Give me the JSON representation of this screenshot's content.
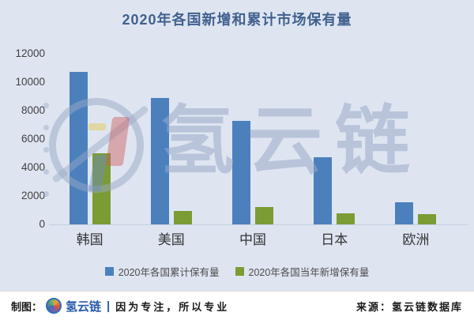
{
  "title": "2020年各国新增和累计市场保有量",
  "chart_data": {
    "type": "bar",
    "categories": [
      "韩国",
      "美国",
      "中国",
      "日本",
      "欧洲"
    ],
    "series": [
      {
        "key": "cumulative",
        "name": "2020年各国累计保有量",
        "color": "#4b80bd",
        "values": [
          10700,
          8900,
          7300,
          4750,
          1550
        ]
      },
      {
        "key": "new",
        "name": "2020年各国当年新增保有量",
        "color": "#7b9c35",
        "values": [
          5000,
          950,
          1200,
          800,
          750
        ]
      }
    ],
    "ylim": [
      0,
      12000
    ],
    "yticks": [
      0,
      2000,
      4000,
      6000,
      8000,
      10000,
      12000
    ],
    "grid": false,
    "legend_position": "bottom"
  },
  "watermark": {
    "text": "氢云链"
  },
  "footer": {
    "made_by_label": "制图：",
    "brand": "氢云链",
    "separator": "|",
    "slogan": "因为专注，所以专业",
    "source": "来源：氢云链数据库"
  },
  "colors": {
    "background": "#dee5f1",
    "title": "#41618e",
    "bar_blue": "#4b80bd",
    "bar_green": "#7b9c35",
    "axis_text": "#404040",
    "footer_brand": "#2a5cab"
  }
}
